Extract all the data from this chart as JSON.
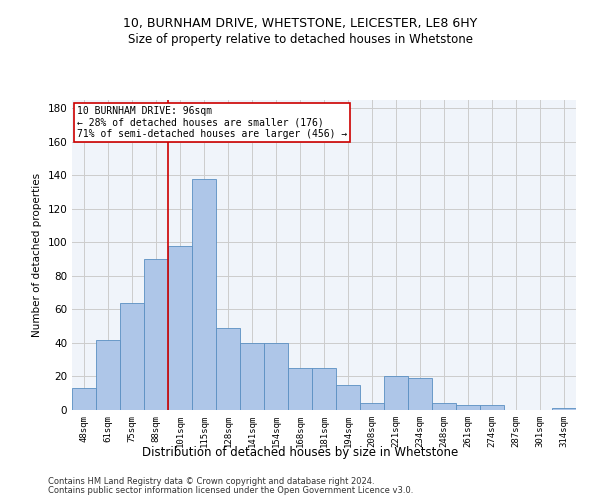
{
  "title_line1": "10, BURNHAM DRIVE, WHETSTONE, LEICESTER, LE8 6HY",
  "title_line2": "Size of property relative to detached houses in Whetstone",
  "xlabel": "Distribution of detached houses by size in Whetstone",
  "ylabel": "Number of detached properties",
  "categories": [
    "48sqm",
    "61sqm",
    "75sqm",
    "88sqm",
    "101sqm",
    "115sqm",
    "128sqm",
    "141sqm",
    "154sqm",
    "168sqm",
    "181sqm",
    "194sqm",
    "208sqm",
    "221sqm",
    "234sqm",
    "248sqm",
    "261sqm",
    "274sqm",
    "287sqm",
    "301sqm",
    "314sqm"
  ],
  "values": [
    13,
    42,
    64,
    90,
    98,
    138,
    49,
    40,
    40,
    25,
    25,
    15,
    4,
    20,
    19,
    4,
    3,
    3,
    0,
    0,
    1
  ],
  "bar_color": "#aec6e8",
  "bar_edge_color": "#5a8fc2",
  "vline_x": 3.5,
  "vline_color": "#cc0000",
  "annotation_text": "10 BURNHAM DRIVE: 96sqm\n← 28% of detached houses are smaller (176)\n71% of semi-detached houses are larger (456) →",
  "annotation_box_color": "#ffffff",
  "annotation_box_edge_color": "#cc0000",
  "ylim": [
    0,
    185
  ],
  "yticks": [
    0,
    20,
    40,
    60,
    80,
    100,
    120,
    140,
    160,
    180
  ],
  "footer_line1": "Contains HM Land Registry data © Crown copyright and database right 2024.",
  "footer_line2": "Contains public sector information licensed under the Open Government Licence v3.0.",
  "grid_color": "#cccccc",
  "bg_color": "#f0f4fa"
}
